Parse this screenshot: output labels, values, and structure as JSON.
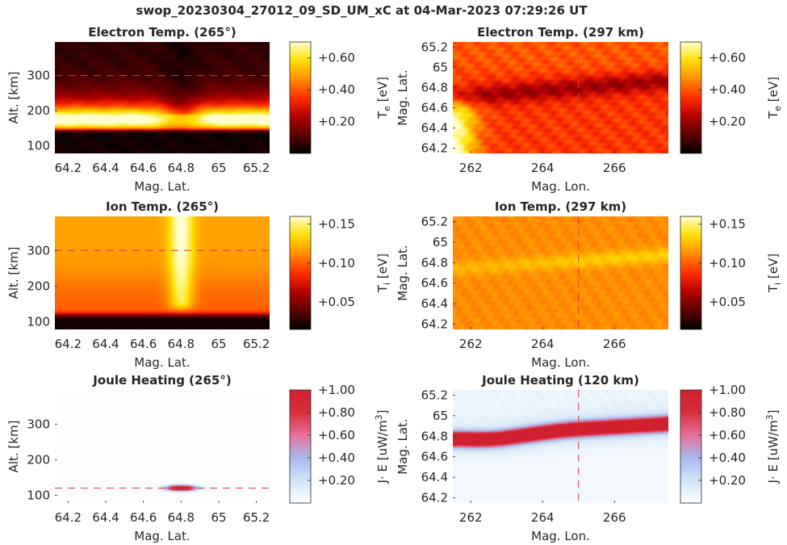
{
  "figure": {
    "title": "swop_20230304_27012_09_SD_UM_xC at 04-Mar-2023 07:29:26 UT"
  },
  "colors": {
    "text": "#262626",
    "hot_colormap": [
      "#000000",
      "#5a0000",
      "#b40000",
      "#ff2d00",
      "#ff8c00",
      "#ffe000",
      "#ffffd0"
    ],
    "diverging_colormap": [
      "#ffffff",
      "#cfe4f7",
      "#a9b8ee",
      "#e6709a",
      "#d7303a",
      "#d0202e"
    ],
    "ref_line": "#d23c3c"
  },
  "chart_data": [
    {
      "id": "p1",
      "type": "heatmap",
      "title": "Electron Temp. (265°)",
      "xlabel": "Mag. Lat.",
      "ylabel": "Alt. [km]",
      "xlim": [
        64.13,
        65.27
      ],
      "ylim": [
        78,
        396
      ],
      "xticks": [
        64.2,
        64.4,
        64.6,
        64.8,
        65,
        65.2
      ],
      "xtick_labels": [
        "64.2",
        "64.4",
        "64.6",
        "64.8",
        "65",
        "65.2"
      ],
      "yticks": [
        100,
        200,
        300
      ],
      "ytick_labels": [
        "100",
        "200",
        "300"
      ],
      "hline": 300,
      "field": "te_alt",
      "colormap": "hot",
      "colorbar": {
        "label": "T_e [eV]",
        "label_main": "T",
        "label_sub": "e",
        "label_rest": " [eV]",
        "range": [
          0,
          0.7
        ],
        "ticks": [
          0.2,
          0.4,
          0.6
        ],
        "tick_labels": [
          "+0.20",
          "+0.40",
          "+0.60"
        ]
      }
    },
    {
      "id": "p2",
      "type": "heatmap",
      "title": "Electron Temp. (297 km)",
      "xlabel": "Mag. Lon.",
      "ylabel": "Mag. Lat.",
      "xlim": [
        261.5,
        267.5
      ],
      "ylim": [
        64.15,
        65.25
      ],
      "xticks": [
        262,
        264,
        266
      ],
      "xtick_labels": [
        "262",
        "264",
        "266"
      ],
      "yticks": [
        64.2,
        64.4,
        64.6,
        64.8,
        65,
        65.2
      ],
      "ytick_labels": [
        "64.2",
        "64.4",
        "64.6",
        "64.8",
        "65",
        "65.2"
      ],
      "vline": 265,
      "field": "te_lon",
      "colormap": "hot",
      "colorbar": {
        "label": "T_e [eV]",
        "label_main": "T",
        "label_sub": "e",
        "label_rest": " [eV]",
        "range": [
          0,
          0.7
        ],
        "ticks": [
          0.2,
          0.4,
          0.6
        ],
        "tick_labels": [
          "+0.20",
          "+0.40",
          "+0.60"
        ]
      }
    },
    {
      "id": "p3",
      "type": "heatmap",
      "title": "Ion Temp. (265°)",
      "xlabel": "Mag. Lat.",
      "ylabel": "Alt. [km]",
      "xlim": [
        64.13,
        65.27
      ],
      "ylim": [
        78,
        396
      ],
      "xticks": [
        64.2,
        64.4,
        64.6,
        64.8,
        65,
        65.2
      ],
      "xtick_labels": [
        "64.2",
        "64.4",
        "64.6",
        "64.8",
        "65",
        "65.2"
      ],
      "yticks": [
        100,
        200,
        300
      ],
      "ytick_labels": [
        "100",
        "200",
        "300"
      ],
      "hline": 300,
      "field": "ti_alt",
      "colormap": "hot",
      "colorbar": {
        "label": "T_i [eV]",
        "label_main": "T",
        "label_sub": "i",
        "label_rest": " [eV]",
        "range": [
          0.015,
          0.16
        ],
        "ticks": [
          0.05,
          0.1,
          0.15
        ],
        "tick_labels": [
          "+0.05",
          "+0.10",
          "+0.15"
        ]
      }
    },
    {
      "id": "p4",
      "type": "heatmap",
      "title": "Ion Temp. (297 km)",
      "xlabel": "Mag. Lon.",
      "ylabel": "Mag. Lat.",
      "xlim": [
        261.5,
        267.5
      ],
      "ylim": [
        64.15,
        65.25
      ],
      "xticks": [
        262,
        264,
        266
      ],
      "xtick_labels": [
        "262",
        "264",
        "266"
      ],
      "yticks": [
        64.2,
        64.4,
        64.6,
        64.8,
        65,
        65.2
      ],
      "ytick_labels": [
        "64.2",
        "64.4",
        "64.6",
        "64.8",
        "65",
        "65.2"
      ],
      "vline": 265,
      "field": "ti_lon",
      "colormap": "hot",
      "colorbar": {
        "label": "T_i [eV]",
        "label_main": "T",
        "label_sub": "i",
        "label_rest": " [eV]",
        "range": [
          0.015,
          0.16
        ],
        "ticks": [
          0.05,
          0.1,
          0.15
        ],
        "tick_labels": [
          "+0.05",
          "+0.10",
          "+0.15"
        ]
      }
    },
    {
      "id": "p5",
      "type": "heatmap",
      "title": "Joule Heating (265°)",
      "xlabel": "Mag. Lat.",
      "ylabel": "Alt. [km]",
      "xlim": [
        64.13,
        65.27
      ],
      "ylim": [
        78,
        396
      ],
      "xticks": [
        64.2,
        64.4,
        64.6,
        64.8,
        65,
        65.2
      ],
      "xtick_labels": [
        "64.2",
        "64.4",
        "64.6",
        "64.8",
        "65",
        "65.2"
      ],
      "yticks": [
        100,
        200,
        300
      ],
      "ytick_labels": [
        "100",
        "200",
        "300"
      ],
      "hline": 120,
      "field": "jh_alt",
      "colormap": "diverging",
      "colorbar": {
        "label": "J· E [uW/m³]",
        "label_main": "J· E [uW/m",
        "label_sup": "3",
        "label_rest": "]",
        "range": [
          0,
          1.0
        ],
        "ticks": [
          0.2,
          0.4,
          0.6,
          0.8,
          1.0
        ],
        "tick_labels": [
          "+0.20",
          "+0.40",
          "+0.60",
          "+0.80",
          "+1.00"
        ]
      }
    },
    {
      "id": "p6",
      "type": "heatmap",
      "title": "Joule Heating (120 km)",
      "xlabel": "Mag. Lon.",
      "ylabel": "Mag. Lat.",
      "xlim": [
        261.5,
        267.5
      ],
      "ylim": [
        64.15,
        65.25
      ],
      "xticks": [
        262,
        264,
        266
      ],
      "xtick_labels": [
        "262",
        "264",
        "266"
      ],
      "yticks": [
        64.2,
        64.4,
        64.6,
        64.8,
        65,
        65.2
      ],
      "ytick_labels": [
        "64.2",
        "64.4",
        "64.6",
        "64.8",
        "65",
        "65.2"
      ],
      "vline": 265,
      "field": "jh_lon",
      "colormap": "diverging",
      "colorbar": {
        "label": "J· E [uW/m³]",
        "label_main": "J· E [uW/m",
        "label_sup": "3",
        "label_rest": "]",
        "range": [
          0,
          1.0
        ],
        "ticks": [
          0.2,
          0.4,
          0.6,
          0.8,
          1.0
        ],
        "tick_labels": [
          "+0.20",
          "+0.40",
          "+0.60",
          "+0.80",
          "+1.00"
        ]
      }
    }
  ]
}
